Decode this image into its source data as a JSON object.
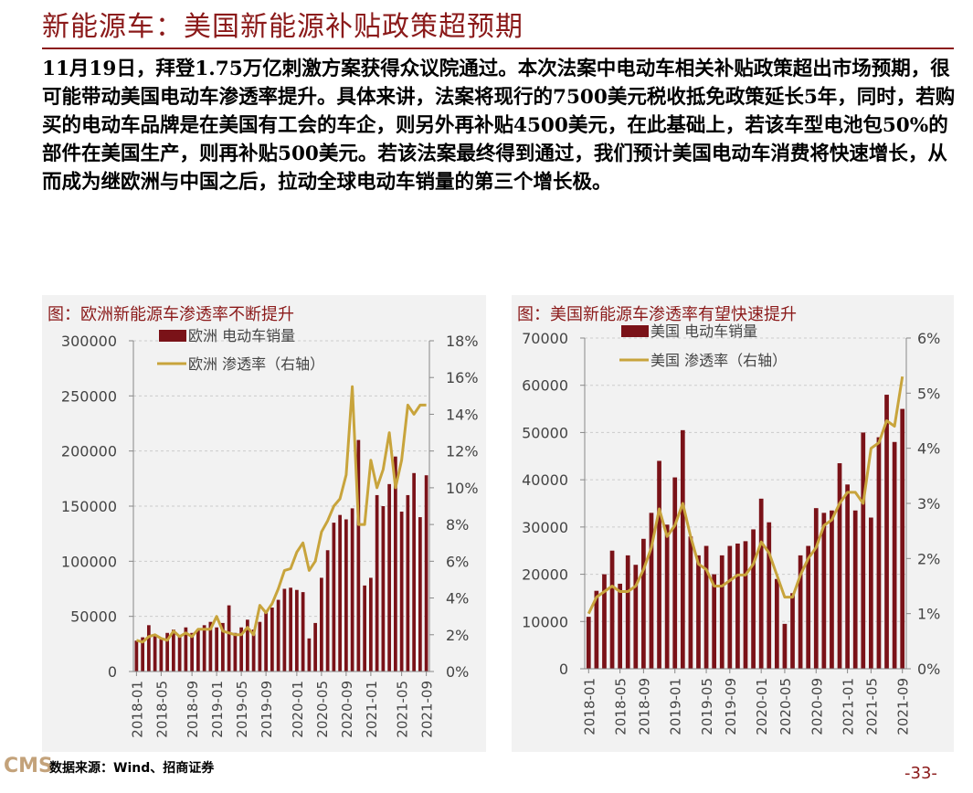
{
  "header": {
    "title": "新能源车：美国新能源补贴政策超预期"
  },
  "body_text": "11月19日，拜登1.75万亿刺激方案获得众议院通过。本次法案中电动车相关补贴政策超出市场预期，很可能带动美国电动车渗透率提升。具体来讲，法案将现行的7500美元税收抵免政策延长5年，同时，若购买的电动车品牌是在美国有工会的车企，则另外再补贴4500美元，在此基础上，若该车型电池包50%的部件在美国生产，则再补贴500美元。若该法案最终得到通过，我们预计美国电动车消费将快速增长，从而成为继欧洲与中国之后，拉动全球电动车销量的第三个增长极。",
  "footer": {
    "logo": "CMS",
    "source": "数据来源：Wind、招商证券",
    "page": "-33-"
  },
  "colors": {
    "bar": "#7a1218",
    "line": "#c8a43c",
    "accent": "#8b1a1a",
    "panel_bg": "#f2f2f2"
  },
  "chart_data": [
    {
      "type": "bar",
      "title": "图：欧洲新能源车渗透率不断提升",
      "legend": [
        "欧洲 电动车销量",
        "欧洲 渗透率（右轴）"
      ],
      "legend_placement": "top",
      "x_ticks": [
        "2018-01",
        "2018-05",
        "2018-09",
        "2019-01",
        "2019-05",
        "2019-09",
        "2020-01",
        "2020-05",
        "2020-09",
        "2021-01",
        "2021-05",
        "2021-09"
      ],
      "ylim": [
        0,
        300000
      ],
      "y_ticks": [
        "0",
        "50000",
        "100000",
        "150000",
        "200000",
        "250000",
        "300000"
      ],
      "y2lim": [
        0,
        18
      ],
      "y2_ticks": [
        "0%",
        "2%",
        "4%",
        "6%",
        "8%",
        "10%",
        "12%",
        "14%",
        "16%",
        "18%"
      ],
      "series": [
        {
          "name": "欧洲 电动车销量",
          "kind": "bar",
          "axis": "left",
          "values": [
            28000,
            31000,
            42000,
            33000,
            30000,
            35000,
            38000,
            32000,
            40000,
            35000,
            38000,
            42000,
            45000,
            40000,
            44000,
            60000,
            35000,
            40000,
            47000,
            38000,
            45000,
            55000,
            58000,
            65000,
            75000,
            76000,
            74000,
            72000,
            30000,
            44000,
            85000,
            110000,
            135000,
            142000,
            138000,
            148000,
            210000,
            78000,
            85000,
            160000,
            150000,
            170000,
            195000,
            145000,
            160000,
            180000,
            140000,
            178000
          ]
        },
        {
          "name": "欧洲 渗透率（右轴）",
          "kind": "line",
          "axis": "right",
          "values": [
            1.7,
            1.6,
            1.9,
            2.0,
            1.8,
            1.7,
            2.2,
            1.9,
            2.1,
            1.9,
            2.3,
            2.3,
            2.3,
            3.0,
            2.2,
            2.1,
            2.0,
            2.0,
            2.4,
            2.0,
            3.6,
            3.2,
            3.7,
            4.5,
            5.5,
            5.6,
            6.5,
            7.0,
            5.5,
            6.0,
            7.6,
            8.2,
            9.0,
            9.4,
            10.7,
            15.5,
            8.0,
            8.0,
            11.5,
            10.0,
            11.0,
            13.0,
            10.0,
            11.5,
            14.5,
            14.0,
            14.5,
            14.5
          ]
        }
      ]
    },
    {
      "type": "bar",
      "title": "图：美国新能源车渗透率有望快速提升",
      "legend": [
        "美国 电动车销量",
        "美国 渗透率（右轴）"
      ],
      "legend_placement": "top",
      "x_ticks": [
        "2018-01",
        "2018-05",
        "2018-09",
        "2019-01",
        "2019-05",
        "2019-09",
        "2020-01",
        "2020-05",
        "2020-09",
        "2021-01",
        "2021-05",
        "2021-09"
      ],
      "ylim": [
        0,
        70000
      ],
      "y_ticks": [
        "0",
        "10000",
        "20000",
        "30000",
        "40000",
        "50000",
        "60000",
        "70000"
      ],
      "y2lim": [
        0,
        6
      ],
      "y2_ticks": [
        "0%",
        "1%",
        "2%",
        "3%",
        "4%",
        "5%",
        "6%"
      ],
      "series": [
        {
          "name": "美国 电动车销量",
          "kind": "bar",
          "axis": "left",
          "values": [
            11000,
            16500,
            20000,
            25000,
            18000,
            24000,
            22000,
            27500,
            33000,
            44000,
            30500,
            40500,
            50500,
            28000,
            24000,
            26000,
            20000,
            24000,
            26000,
            26500,
            27000,
            29500,
            36000,
            31000,
            19000,
            9500,
            16000,
            24000,
            26000,
            34000,
            33000,
            33500,
            43500,
            39000,
            33500,
            50000,
            32000,
            49000,
            58000,
            48000,
            55000
          ]
        },
        {
          "name": "美国 渗透率（右轴）",
          "kind": "line",
          "axis": "right",
          "values": [
            1.0,
            1.3,
            1.4,
            1.5,
            1.4,
            1.4,
            1.5,
            1.8,
            2.2,
            2.9,
            2.4,
            2.6,
            3.0,
            2.4,
            1.9,
            1.8,
            1.5,
            1.5,
            1.6,
            1.7,
            1.7,
            1.9,
            2.3,
            2.1,
            1.7,
            1.3,
            1.3,
            1.7,
            2.0,
            2.2,
            2.6,
            2.7,
            3.0,
            3.2,
            3.2,
            3.0,
            4.0,
            4.1,
            4.5,
            4.4,
            5.3
          ]
        }
      ]
    }
  ]
}
